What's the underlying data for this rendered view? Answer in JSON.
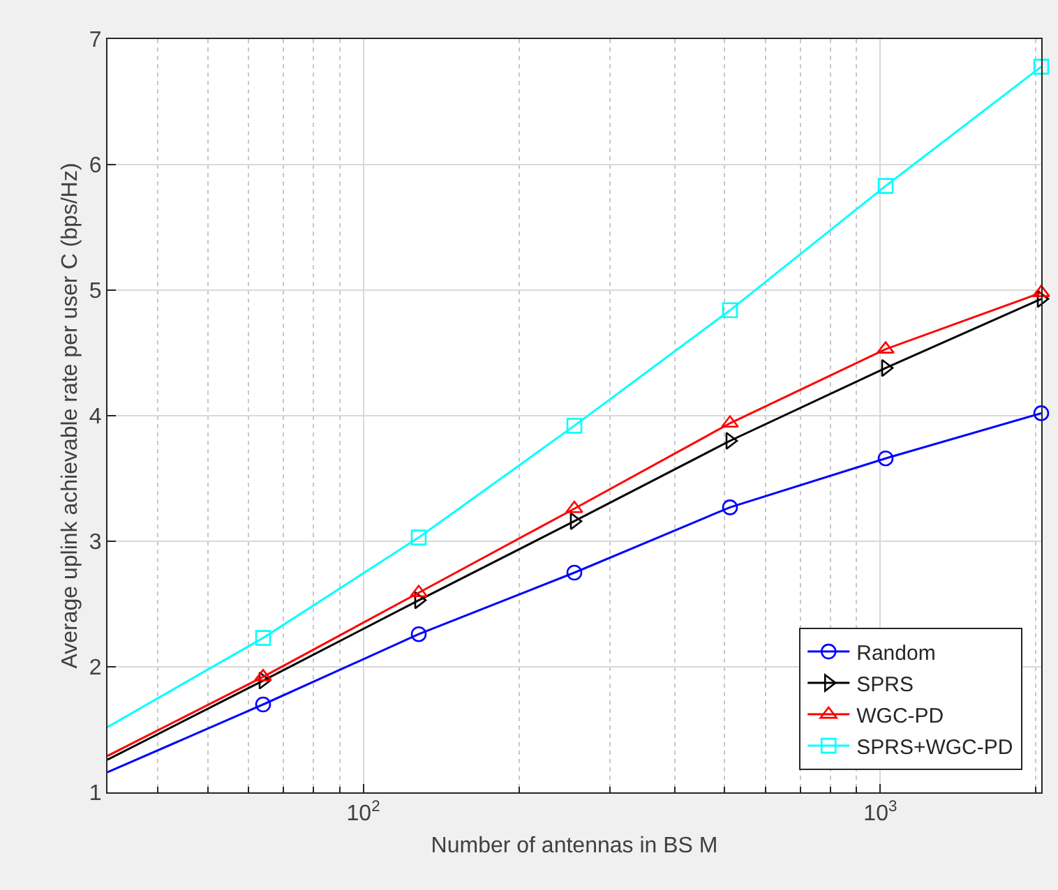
{
  "chart_data": {
    "type": "line",
    "xlabel": "Number of antennas in BS M",
    "ylabel": "Average uplink achievable rate per user C (bps/Hz)",
    "x": [
      32,
      64,
      128,
      256,
      512,
      1024,
      2048
    ],
    "series": [
      {
        "name": "Random",
        "color": "#0000ff",
        "marker": "circle",
        "values": [
          1.16,
          1.7,
          2.26,
          2.75,
          3.27,
          3.66,
          4.02
        ]
      },
      {
        "name": "SPRS",
        "color": "#000000",
        "marker": "triangle-right",
        "values": [
          1.26,
          1.89,
          2.53,
          3.16,
          3.8,
          4.38,
          4.93
        ]
      },
      {
        "name": "WGC-PD",
        "color": "#ff0000",
        "marker": "triangle",
        "values": [
          1.29,
          1.92,
          2.59,
          3.26,
          3.94,
          4.53,
          4.98
        ]
      },
      {
        "name": "SPRS+WGC-PD",
        "color": "#00ffff",
        "marker": "square",
        "values": [
          1.52,
          2.23,
          3.03,
          3.92,
          4.84,
          5.83,
          6.78
        ]
      }
    ],
    "log": "x",
    "xlim": [
      32,
      2048
    ],
    "ylim": [
      1,
      7
    ],
    "xticks": [
      {
        "value": 40,
        "label": null
      },
      {
        "value": 50,
        "label": null
      },
      {
        "value": 60,
        "label": null
      },
      {
        "value": 70,
        "label": null
      },
      {
        "value": 80,
        "label": null
      },
      {
        "value": 90,
        "label": null
      },
      {
        "value": 100,
        "label": "10$^{2}$"
      },
      {
        "value": 200,
        "label": null
      },
      {
        "value": 300,
        "label": null
      },
      {
        "value": 400,
        "label": null
      },
      {
        "value": 500,
        "label": null
      },
      {
        "value": 600,
        "label": null
      },
      {
        "value": 700,
        "label": null
      },
      {
        "value": 800,
        "label": null
      },
      {
        "value": 900,
        "label": null
      },
      {
        "value": 1000,
        "label": "10$^{3}$"
      },
      {
        "value": 2000,
        "label": null
      }
    ],
    "yticks": [
      1,
      2,
      3,
      4,
      5,
      6,
      7
    ],
    "grid": true,
    "legend": "bottom right",
    "line_style": "solid"
  }
}
